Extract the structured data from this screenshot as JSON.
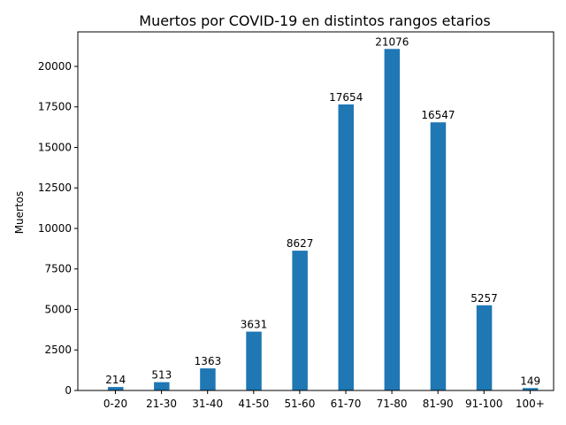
{
  "chart_data": {
    "type": "bar",
    "title": "Muertos por COVID-19 en distintos rangos etarios",
    "xlabel": "",
    "ylabel": "Muertos",
    "categories": [
      "0-20",
      "21-30",
      "31-40",
      "41-50",
      "51-60",
      "61-70",
      "71-80",
      "81-90",
      "91-100",
      "100+"
    ],
    "values": [
      214,
      513,
      1363,
      3631,
      8627,
      17654,
      21076,
      16547,
      5257,
      149
    ],
    "ylim": [
      0,
      22130
    ],
    "yticks": [
      0,
      2500,
      5000,
      7500,
      10000,
      12500,
      15000,
      17500,
      20000
    ],
    "grid": false,
    "legend": false,
    "bar_color": "#1f77b4"
  }
}
